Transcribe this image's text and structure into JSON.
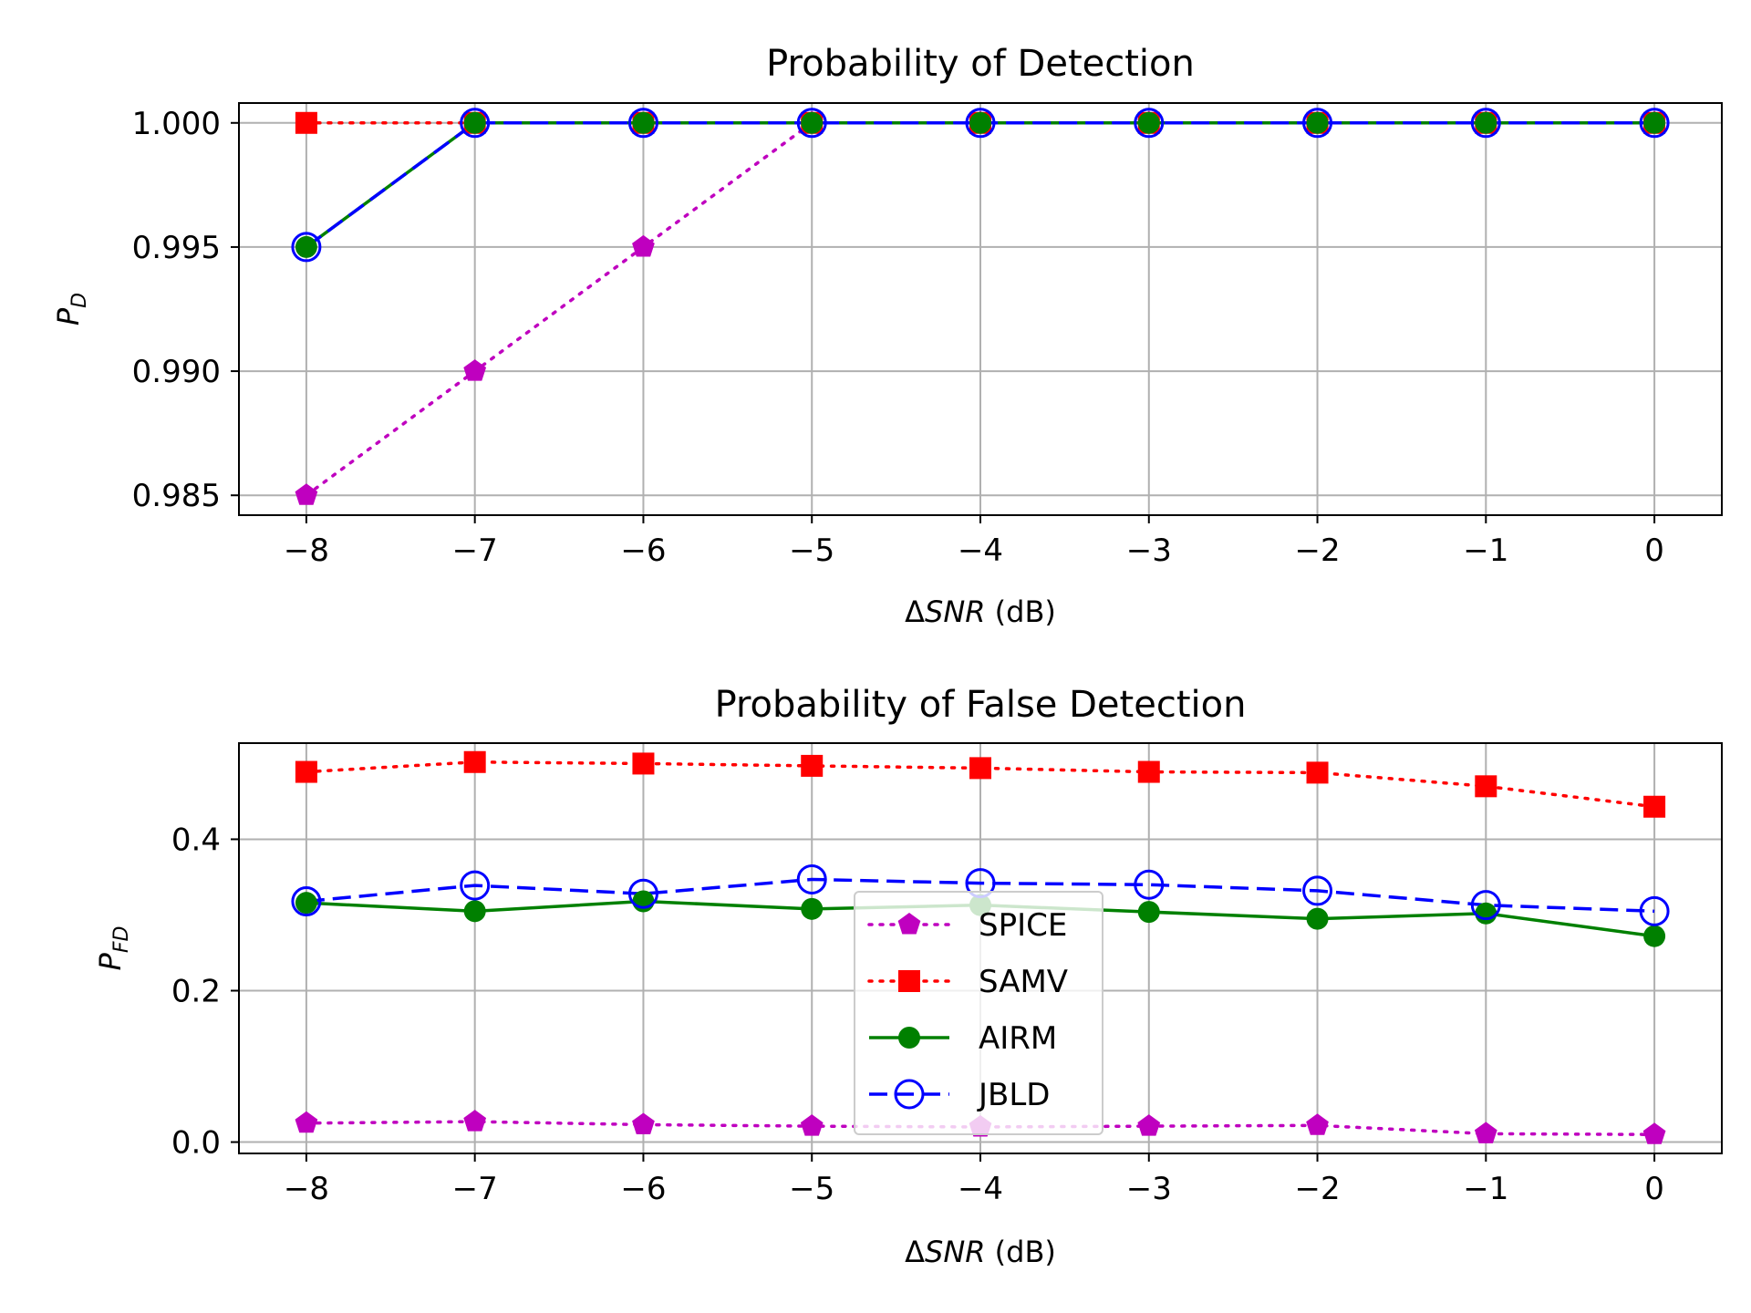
{
  "chart_data": [
    {
      "type": "line",
      "title": "Probability of Detection",
      "xlabel_prefix": "Δ",
      "xlabel_var": "SNR",
      "xlabel_unit": " (dB)",
      "ylabel_main": "P",
      "ylabel_sub": "D",
      "x": [
        -8,
        -7,
        -6,
        -5,
        -4,
        -3,
        -2,
        -1,
        0
      ],
      "xlim": [
        -8.4,
        0.4
      ],
      "ylim": [
        0.9842,
        1.0008
      ],
      "xticks": [
        -8,
        -7,
        -6,
        -5,
        -4,
        -3,
        -2,
        -1,
        0
      ],
      "xtick_labels": [
        "−8",
        "−7",
        "−6",
        "−5",
        "−4",
        "−3",
        "−2",
        "−1",
        "0"
      ],
      "yticks": [
        0.985,
        0.99,
        0.995,
        1.0
      ],
      "ytick_labels": [
        "0.985",
        "0.990",
        "0.995",
        "1.000"
      ],
      "grid": true,
      "series": [
        {
          "name": "SPICE",
          "color": "#bf00bf",
          "line": "dotted",
          "marker": "pentagon",
          "values": [
            0.985,
            0.99,
            0.995,
            1.0,
            1.0,
            1.0,
            1.0,
            1.0,
            1.0
          ]
        },
        {
          "name": "SAMV",
          "color": "#ff0000",
          "line": "dotted",
          "marker": "square",
          "values": [
            1.0,
            1.0,
            1.0,
            1.0,
            1.0,
            1.0,
            1.0,
            1.0,
            1.0
          ]
        },
        {
          "name": "AIRM",
          "color": "#008000",
          "line": "solid",
          "marker": "circle",
          "values": [
            0.995,
            1.0,
            1.0,
            1.0,
            1.0,
            1.0,
            1.0,
            1.0,
            1.0
          ]
        },
        {
          "name": "JBLD",
          "color": "#0000ff",
          "line": "dashed",
          "marker": "open-circle",
          "values": [
            0.995,
            1.0,
            1.0,
            1.0,
            1.0,
            1.0,
            1.0,
            1.0,
            1.0
          ]
        }
      ]
    },
    {
      "type": "line",
      "title": "Probability of False Detection",
      "xlabel_prefix": "Δ",
      "xlabel_var": "SNR",
      "xlabel_unit": " (dB)",
      "ylabel_main": "P",
      "ylabel_sub": "FD",
      "x": [
        -8,
        -7,
        -6,
        -5,
        -4,
        -3,
        -2,
        -1,
        0
      ],
      "xlim": [
        -8.4,
        0.4
      ],
      "ylim": [
        -0.015,
        0.527
      ],
      "xticks": [
        -8,
        -7,
        -6,
        -5,
        -4,
        -3,
        -2,
        -1,
        0
      ],
      "xtick_labels": [
        "−8",
        "−7",
        "−6",
        "−5",
        "−4",
        "−3",
        "−2",
        "−1",
        "0"
      ],
      "yticks": [
        0.0,
        0.2,
        0.4
      ],
      "ytick_labels": [
        "0.0",
        "0.2",
        "0.4"
      ],
      "grid": true,
      "legend_position": "lower center",
      "series": [
        {
          "name": "SPICE",
          "color": "#bf00bf",
          "line": "dotted",
          "marker": "pentagon",
          "values": [
            0.025,
            0.027,
            0.023,
            0.021,
            0.02,
            0.021,
            0.022,
            0.011,
            0.01
          ]
        },
        {
          "name": "SAMV",
          "color": "#ff0000",
          "line": "dotted",
          "marker": "square",
          "values": [
            0.489,
            0.502,
            0.5,
            0.497,
            0.494,
            0.489,
            0.488,
            0.47,
            0.443
          ]
        },
        {
          "name": "AIRM",
          "color": "#008000",
          "line": "solid",
          "marker": "circle",
          "values": [
            0.316,
            0.305,
            0.318,
            0.308,
            0.313,
            0.304,
            0.295,
            0.302,
            0.272
          ]
        },
        {
          "name": "JBLD",
          "color": "#0000ff",
          "line": "dashed",
          "marker": "open-circle",
          "values": [
            0.318,
            0.339,
            0.328,
            0.347,
            0.342,
            0.34,
            0.332,
            0.313,
            0.305
          ]
        }
      ]
    }
  ]
}
